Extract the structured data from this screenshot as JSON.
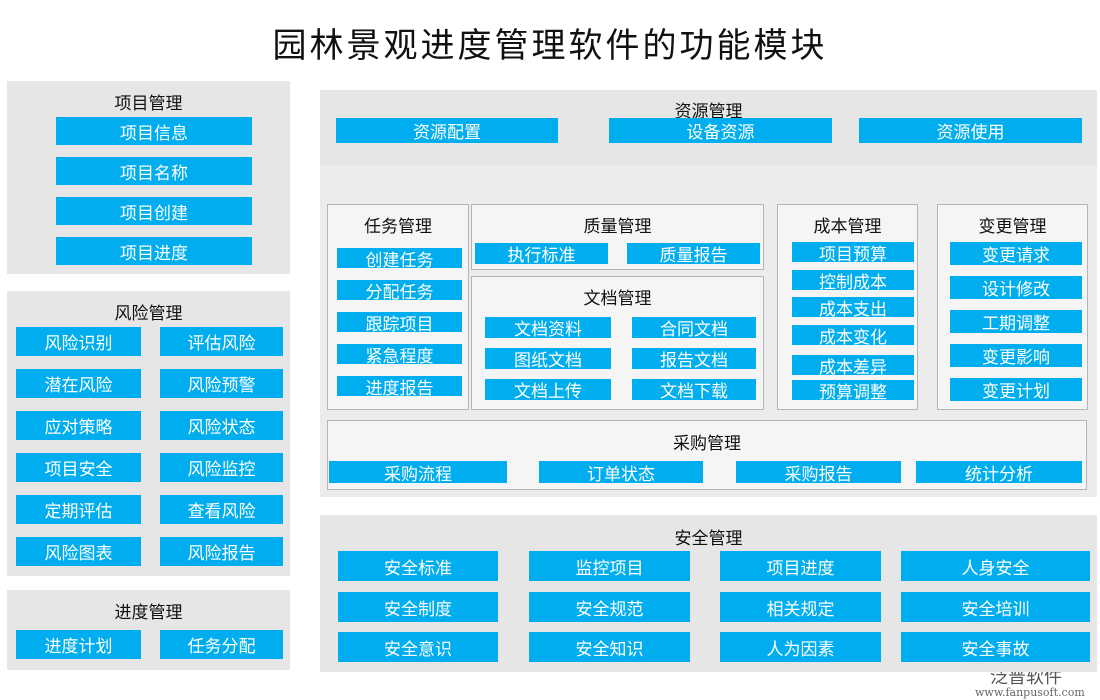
{
  "title": "园林景观进度管理软件的功能模块",
  "sections": [
    {
      "title": "项目管理",
      "items": [
        "项目信息",
        "项目名称",
        "项目创建",
        "项目进度"
      ]
    },
    {
      "title": "风险管理",
      "items": [
        "风险识别",
        "评估风险",
        "潜在风险",
        "风险预警",
        "应对策略",
        "风险状态",
        "项目安全",
        "风险监控",
        "定期评估",
        "查看风险",
        "风险图表",
        "风险报告"
      ]
    },
    {
      "title": "进度管理",
      "items": [
        "进度计划",
        "任务分配"
      ]
    },
    {
      "title": "资源管理",
      "items": [
        "资源配置",
        "设备资源",
        "资源使用"
      ]
    },
    {
      "title": "任务管理",
      "items": [
        "创建任务",
        "分配任务",
        "跟踪项目",
        "紧急程度",
        "进度报告"
      ]
    },
    {
      "title": "质量管理",
      "items": [
        "执行标准",
        "质量报告"
      ]
    },
    {
      "title": "文档管理",
      "items": [
        "文档资料",
        "合同文档",
        "图纸文档",
        "报告文档",
        "文档上传",
        "文档下载"
      ]
    },
    {
      "title": "成本管理",
      "items": [
        "项目预算",
        "控制成本",
        "成本支出",
        "成本变化",
        "成本差异",
        "预算调整"
      ]
    },
    {
      "title": "变更管理",
      "items": [
        "变更请求",
        "设计修改",
        "工期调整",
        "变更影响",
        "变更计划"
      ]
    },
    {
      "title": "采购管理",
      "items": [
        "采购流程",
        "订单状态",
        "采购报告",
        "统计分析"
      ]
    },
    {
      "title": "安全管理",
      "items": [
        "安全标准",
        "监控项目",
        "项目进度",
        "人身安全",
        "安全制度",
        "安全规范",
        "相关规定",
        "安全培训",
        "安全意识",
        "安全知识",
        "人为因素",
        "安全事故"
      ]
    }
  ],
  "watermark": {
    "brand": "泛普软件",
    "url": "www.fanpusoft.com"
  }
}
